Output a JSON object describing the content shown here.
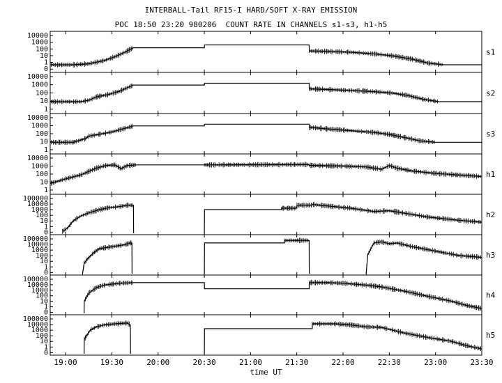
{
  "chart_data": {
    "type": "line",
    "title": "INTERBALL-Tail RF15-I HARD/SOFT X-RAY EMISSION",
    "subtitle": "POC 18:50 23:20 980206  COUNT RATE IN CHANNELS s1-s3, h1-h5",
    "xlabel": "time UT",
    "x_ticks": [
      "19:00",
      "19:30",
      "20:00",
      "20:30",
      "21:00",
      "21:30",
      "22:00",
      "22:30",
      "23:00",
      "23:30"
    ],
    "x_tick_minutes": [
      1140,
      1170,
      1200,
      1230,
      1260,
      1290,
      1320,
      1350,
      1380,
      1410
    ],
    "xlim": [
      "18:50",
      "23:30"
    ],
    "xlim_minutes": [
      1130,
      1410
    ],
    "y_scale": "log",
    "grid": false,
    "panels": [
      {
        "name": "s1",
        "y_tick_labels": [
          "10000",
          "1000",
          "100",
          "10",
          "1",
          "0"
        ],
        "ylim": [
          0.5,
          20000
        ],
        "x": [
          1130,
          1145,
          1155,
          1165,
          1172,
          1178,
          1184,
          1230,
          1230.1,
          1298,
          1298.1,
          1310,
          1325,
          1340,
          1352,
          1365,
          1375,
          1385,
          1410
        ],
        "y": [
          3,
          3,
          4,
          10,
          30,
          100,
          400,
          400,
          900,
          900,
          160,
          140,
          110,
          70,
          40,
          15,
          5,
          3,
          3
        ]
      },
      {
        "name": "s2",
        "y_tick_labels": [
          "10000",
          "1000",
          "100",
          "10",
          "1"
        ],
        "ylim": [
          0.5,
          20000
        ],
        "x": [
          1130,
          1150,
          1155,
          1160,
          1168,
          1175,
          1184,
          1230,
          1230.1,
          1298,
          1298.1,
          1310,
          1325,
          1340,
          1352,
          1362,
          1372,
          1382,
          1410
        ],
        "y": [
          10,
          10,
          15,
          40,
          80,
          200,
          1200,
          1200,
          2000,
          2000,
          400,
          330,
          250,
          180,
          120,
          60,
          20,
          10,
          10
        ]
      },
      {
        "name": "s3",
        "y_tick_labels": [
          "10000",
          "1000",
          "100",
          "10",
          "1"
        ],
        "ylim": [
          0.5,
          20000
        ],
        "x": [
          1130,
          1145,
          1153,
          1155,
          1160,
          1170,
          1184,
          1230,
          1230.1,
          1298,
          1298.1,
          1310,
          1325,
          1340,
          1350,
          1360,
          1370,
          1380,
          1410
        ],
        "y": [
          10,
          10,
          30,
          60,
          90,
          200,
          1200,
          1200,
          2000,
          2000,
          800,
          500,
          300,
          180,
          100,
          40,
          15,
          10,
          10
        ]
      },
      {
        "name": "h1",
        "y_tick_labels": [
          "10000",
          "1000",
          "100",
          "10",
          "1"
        ],
        "ylim": [
          0.5,
          20000
        ],
        "x": [
          1130,
          1140,
          1150,
          1160,
          1166,
          1172,
          1176,
          1180,
          1186,
          1230,
          1298,
          1298.1,
          1310,
          1320,
          1335,
          1345,
          1350,
          1355,
          1365,
          1380,
          1410
        ],
        "y": [
          8,
          30,
          100,
          700,
          1500,
          1800,
          600,
          1500,
          1800,
          1800,
          2000,
          1600,
          1400,
          1300,
          1000,
          500,
          1500,
          700,
          300,
          150,
          60
        ]
      },
      {
        "name": "h2",
        "y_tick_labels": [
          "100000",
          "10000",
          "1000",
          "100",
          "10",
          "1",
          "0"
        ],
        "ylim": [
          0.5,
          300000
        ],
        "segments": [
          {
            "x": [
              1138,
              1141,
              1145,
              1150,
              1155,
              1162,
              1168,
              1173,
              1176,
              1180,
              1184,
              1184.1
            ],
            "y": [
              1,
              3,
              50,
              300,
              900,
              3000,
              6000,
              8000,
              10000,
              15000,
              15000,
              0.5
            ]
          },
          {
            "x": [
              1230,
              1230.1,
              1280,
              1280.1,
              1290,
              1290.1,
              1300,
              1300.1,
              1325,
              1340,
              1350,
              1360,
              1375,
              1395,
              1410
            ],
            "y": [
              0.5,
              3000,
              3000,
              5000,
              5000,
              15000,
              15000,
              20000,
              5000,
              1500,
              2000,
              800,
              200,
              60,
              30
            ]
          }
        ]
      },
      {
        "name": "h3",
        "y_tick_labels": [
          "100000",
          "10000",
          "1000",
          "100",
          "10",
          "1",
          "0"
        ],
        "ylim": [
          0.5,
          300000
        ],
        "segments": [
          {
            "x": [
              1151,
              1152,
              1154,
              1158,
              1162,
              1170,
              1178,
              1182,
              1183,
              1183.1
            ],
            "y": [
              0.5,
              20,
              100,
              1000,
              5000,
              10000,
              20000,
              40000,
              40000,
              0.5
            ]
          },
          {
            "x": [
              1230,
              1230.1,
              1282,
              1282.1,
              1298,
              1298.1
            ],
            "y": [
              0.5,
              40000,
              40000,
              100000,
              100000,
              0.5
            ]
          },
          {
            "x": [
              1335,
              1336,
              1340,
              1345,
              1350,
              1355,
              1365,
              1380,
              1395,
              1410
            ],
            "y": [
              0.5,
              500,
              40000,
              60000,
              30000,
              40000,
              10000,
              2000,
              400,
              200
            ]
          }
        ]
      },
      {
        "name": "h4",
        "y_tick_labels": [
          "100000",
          "10000",
          "1000",
          "100",
          "10",
          "1",
          "0"
        ],
        "ylim": [
          0.5,
          300000
        ],
        "segments": [
          {
            "x": [
              1152,
              1152.1,
              1155,
              1160,
              1165,
              1175,
              1184,
              1230,
              1230.1,
              1298,
              1298.1,
              1310,
              1320,
              1335,
              1345,
              1360,
              1375,
              1390,
              1400,
              1410
            ],
            "y": [
              0.5,
              50,
              1000,
              8000,
              20000,
              40000,
              50000,
              50000,
              5000,
              5000,
              50000,
              50000,
              40000,
              20000,
              10000,
              2000,
              300,
              50,
              10,
              3
            ]
          }
        ]
      },
      {
        "name": "h5",
        "y_tick_labels": [
          "100000",
          "10000",
          "1000",
          "100",
          "10",
          "1",
          "0"
        ],
        "ylim": [
          0.5,
          300000
        ],
        "segments": [
          {
            "x": [
              1152,
              1152.1,
              1156,
              1160,
              1165,
              1172,
              1180,
              1182,
              1182.1
            ],
            "y": [
              0.5,
              100,
              3000,
              10000,
              20000,
              30000,
              40000,
              20000,
              0.5
            ]
          },
          {
            "x": [
              1230,
              1230.1,
              1300,
              1300.1,
              1315,
              1325,
              1335,
              1345,
              1360,
              1375,
              1390,
              1400,
              1410
            ],
            "y": [
              0.5,
              5000,
              5000,
              30000,
              30000,
              20000,
              10000,
              8000,
              1000,
              200,
              50,
              10,
              3
            ]
          }
        ]
      }
    ]
  }
}
